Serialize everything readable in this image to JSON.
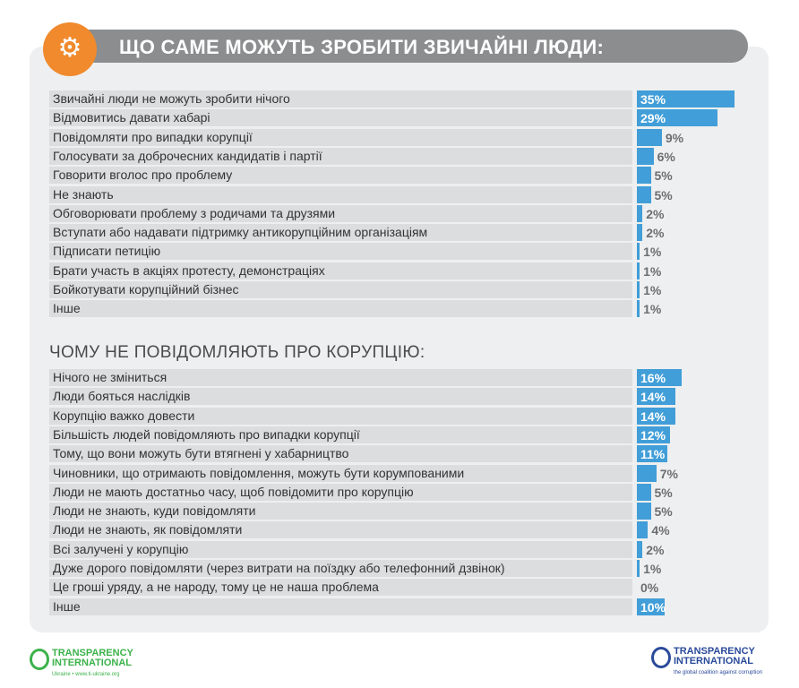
{
  "title": "ЩО САМЕ МОЖУТЬ ЗРОБИТИ ЗВИЧАЙНІ ЛЮДИ:",
  "section1": [
    {
      "label": "Звичайні люди не можуть зробити нічого",
      "value": 35,
      "text": "35%"
    },
    {
      "label": "Відмовитись давати хабарі",
      "value": 29,
      "text": "29%"
    },
    {
      "label": "Повідомляти про випадки корупції",
      "value": 9,
      "text": "9%"
    },
    {
      "label": "Голосувати за доброчесних кандидатів і партії",
      "value": 6,
      "text": "6%"
    },
    {
      "label": "Говорити вголос про проблему",
      "value": 5,
      "text": "5%"
    },
    {
      "label": "Не знають",
      "value": 5,
      "text": "5%"
    },
    {
      "label": "Обговорювати проблему з родичами та друзями",
      "value": 2,
      "text": "2%"
    },
    {
      "label": "Вступати або надавати підтримку антикорупційним організаціям",
      "value": 2,
      "text": "2%"
    },
    {
      "label": "Підписати петицію",
      "value": 1,
      "text": "1%"
    },
    {
      "label": "Брати участь в акціях протесту, демонстраціях",
      "value": 1,
      "text": "1%"
    },
    {
      "label": "Бойкотувати корупційний бізнес",
      "value": 1,
      "text": "1%"
    },
    {
      "label": "Інше",
      "value": 1,
      "text": "1%"
    }
  ],
  "section2_title": "ЧОМУ НЕ ПОВІДОМЛЯЮТЬ ПРО КОРУПЦІЮ:",
  "section2": [
    {
      "label": "Нічого не зміниться",
      "value": 16,
      "text": "16%"
    },
    {
      "label": "Люди бояться наслідків",
      "value": 14,
      "text": "14%"
    },
    {
      "label": "Корупцію важко довести",
      "value": 14,
      "text": "14%"
    },
    {
      "label": "Більшість людей повідомляють про випадки корупції",
      "value": 12,
      "text": "12%"
    },
    {
      "label": "Тому, що вони можуть бути втягнені у хабарництво",
      "value": 11,
      "text": "11%"
    },
    {
      "label": "Чиновники, що отримають повідомлення, можуть бути корумпованими",
      "value": 7,
      "text": "7%"
    },
    {
      "label": "Люди не мають достатньо часу, щоб повідомити про корупцію",
      "value": 5,
      "text": "5%"
    },
    {
      "label": "Люди не знають, куди повідомляти",
      "value": 5,
      "text": "5%"
    },
    {
      "label": "Люди не знають, як повідомляти",
      "value": 4,
      "text": "4%"
    },
    {
      "label": "Всі залучені у корупцію",
      "value": 2,
      "text": "2%"
    },
    {
      "label": "Дуже дорого повідомляти (через витрати на поїздку або телефонний дзвінок)",
      "value": 1,
      "text": "1%"
    },
    {
      "label": "Це гроші уряду, а не народу, тому це не наша проблема",
      "value": 0,
      "text": "0%"
    },
    {
      "label": "Інше",
      "value": 10,
      "text": "10%"
    }
  ],
  "logo_left": {
    "line1": "TRANSPARENCY",
    "line2": "INTERNATIONAL",
    "sub": "Ukraine • www.ti-ukraine.org"
  },
  "logo_right": {
    "line1": "TRANSPARENCY",
    "line2": "INTERNATIONAL",
    "sub": "the global coalition against corruption"
  },
  "colors": {
    "bar": "#419ed8",
    "orange": "#f08a2c",
    "title_bg": "#8b8d8f"
  }
}
